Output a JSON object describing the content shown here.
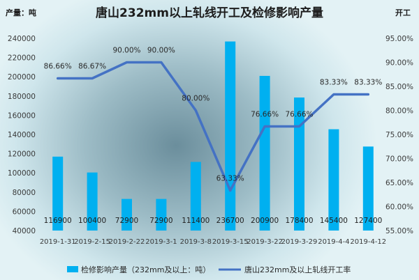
{
  "chart_data": {
    "type": "bar-line",
    "title": "唐山232mm以上轧线开工及检修影响产量",
    "left_axis_unit": "产量：吨",
    "right_axis_unit": "开工",
    "categories": [
      "2019-1-31",
      "2019-2-15",
      "2019-2-22",
      "2019-3-1",
      "2019-3-8",
      "2019-3-15",
      "2019-3-22",
      "2019-3-29",
      "2019-4-4",
      "2019-4-12"
    ],
    "series": [
      {
        "name": "检修影响产量（232mm及以上：吨）",
        "type": "bar",
        "axis": "left",
        "color": "#00b0f0",
        "values": [
          116900,
          100400,
          72900,
          72900,
          111400,
          236700,
          200900,
          178400,
          145400,
          127400
        ],
        "labels": [
          "116900",
          "100400",
          "72900",
          "72900",
          "111400",
          "236700",
          "200900",
          "178400",
          "145400",
          "127400"
        ]
      },
      {
        "name": "唐山232mm及以上轧线开工率",
        "type": "line",
        "axis": "right",
        "color": "#4472c4",
        "values": [
          86.66,
          86.67,
          90.0,
          90.0,
          80.0,
          63.33,
          76.66,
          76.66,
          83.33,
          83.33
        ],
        "labels": [
          "86.66%",
          "86.67%",
          "90.00%",
          "90.00%",
          "80.00%",
          "63.33%",
          "76.66%",
          "76.66%",
          "83.33%",
          "83.33%"
        ]
      }
    ],
    "y_left": {
      "min": 40000,
      "max": 240000,
      "step": 20000,
      "ticks": [
        "40000",
        "60000",
        "80000",
        "100000",
        "120000",
        "140000",
        "160000",
        "180000",
        "200000",
        "220000",
        "240000"
      ]
    },
    "y_right": {
      "min": 55,
      "max": 95,
      "step": 5,
      "ticks": [
        "55.00%",
        "60.00%",
        "65.00%",
        "70.00%",
        "75.00%",
        "80.00%",
        "85.00%",
        "90.00%",
        "95.00%"
      ]
    },
    "grid": false,
    "legend_position": "bottom"
  }
}
